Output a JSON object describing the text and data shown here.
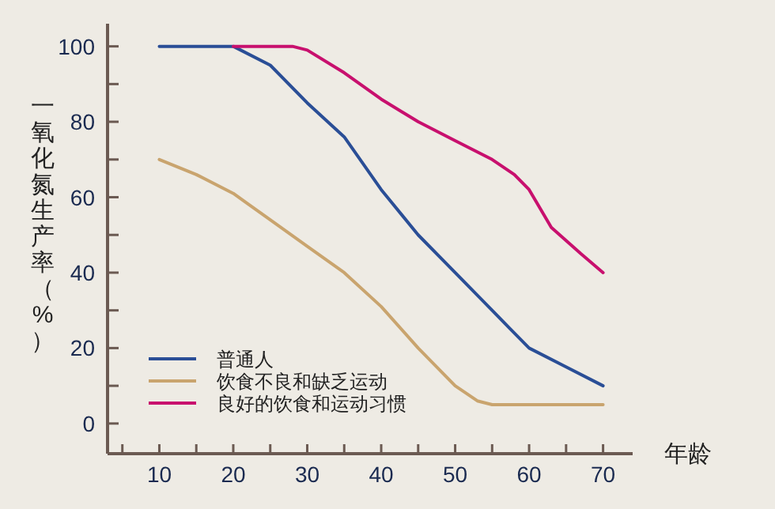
{
  "chart_data": {
    "type": "line",
    "xlabel": "年龄",
    "ylabel": "一氧化氮生产率（%）",
    "xlim": [
      3,
      74
    ],
    "ylim": [
      -8,
      106
    ],
    "xticks": [
      {
        "value": 5,
        "label": null
      },
      10,
      {
        "value": 15,
        "label": null
      },
      20,
      {
        "value": 25,
        "label": null
      },
      30,
      {
        "value": 35,
        "label": null
      },
      40,
      {
        "value": 45,
        "label": null
      },
      50,
      {
        "value": 55,
        "label": null
      },
      60,
      {
        "value": 65,
        "label": null
      },
      70
    ],
    "yticks": [
      0,
      {
        "value": 10,
        "label": null
      },
      20,
      {
        "value": 30,
        "label": null
      },
      40,
      {
        "value": 50,
        "label": null
      },
      60,
      {
        "value": 70,
        "label": null
      },
      80,
      {
        "value": 90,
        "label": null
      },
      100
    ],
    "grid": false,
    "legend": "bottom left",
    "series": [
      {
        "name": "普通人",
        "color": "#2a4e96",
        "x": [
          10,
          20,
          25,
          30,
          35,
          40,
          45,
          50,
          55,
          57.5,
          60,
          65,
          70
        ],
        "values": [
          100,
          100,
          95,
          85,
          76,
          62,
          50,
          40,
          30,
          25,
          20,
          15,
          10
        ]
      },
      {
        "name": "饮食不良和缺乏运动",
        "color": "#c9a46e",
        "x": [
          10,
          15,
          20,
          25,
          30,
          35,
          40,
          45,
          50,
          53,
          55,
          70
        ],
        "values": [
          70,
          66,
          61,
          54,
          47,
          40,
          31,
          20,
          10,
          6,
          5,
          5
        ]
      },
      {
        "name": "良好的饮食和运动习惯",
        "color": "#c8106e",
        "x": [
          20,
          28,
          30,
          35,
          40,
          45,
          50,
          55,
          58,
          60,
          63,
          67,
          70
        ],
        "values": [
          100,
          100,
          99,
          93,
          86,
          80,
          75,
          70,
          66,
          62,
          52,
          45,
          40
        ]
      }
    ]
  }
}
